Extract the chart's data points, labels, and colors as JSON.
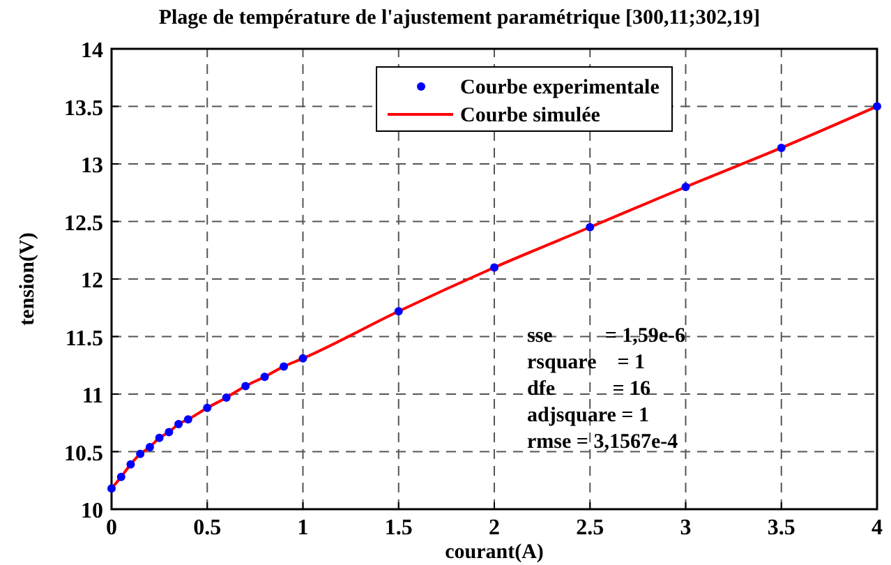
{
  "chart_data": {
    "type": "scatter",
    "title": "Plage de température de l'ajustement paramétrique [300,11;302,19]",
    "xlabel": "courant(A)",
    "ylabel": "tension(V)",
    "x": [
      0,
      0.05,
      0.1,
      0.15,
      0.2,
      0.25,
      0.3,
      0.35,
      0.4,
      0.5,
      0.6,
      0.7,
      0.8,
      0.9,
      1,
      1.5,
      2,
      2.5,
      3,
      3.5,
      4
    ],
    "series": [
      {
        "name": "Courbe experimentale",
        "type": "scatter",
        "color": "#0000ff",
        "marker": "circle",
        "values": [
          10.18,
          10.28,
          10.39,
          10.48,
          10.54,
          10.62,
          10.67,
          10.74,
          10.78,
          10.88,
          10.97,
          11.07,
          11.15,
          11.24,
          11.31,
          11.72,
          12.1,
          12.45,
          12.8,
          13.14,
          13.5
        ]
      },
      {
        "name": "Courbe simulée",
        "type": "line",
        "color": "#ff0000",
        "line_style": "solid",
        "values": [
          10.18,
          10.28,
          10.39,
          10.48,
          10.54,
          10.62,
          10.67,
          10.74,
          10.78,
          10.88,
          10.97,
          11.07,
          11.15,
          11.24,
          11.31,
          11.72,
          12.1,
          12.45,
          12.8,
          13.14,
          13.5
        ]
      }
    ],
    "xlim": [
      0,
      4
    ],
    "xticks": [
      0,
      0.5,
      1,
      1.5,
      2,
      2.5,
      3,
      3.5,
      4
    ],
    "ylim": [
      10,
      14
    ],
    "yticks": [
      10,
      10.5,
      11,
      11.5,
      12,
      12.5,
      13,
      13.5,
      14
    ],
    "grid": true,
    "legend": "top",
    "annotations": [
      "sse          = 1,59e-6",
      "rsquare    = 1",
      "dfe           = 16",
      "adjsquare = 1",
      "rmse = 3,1567e-4"
    ]
  }
}
